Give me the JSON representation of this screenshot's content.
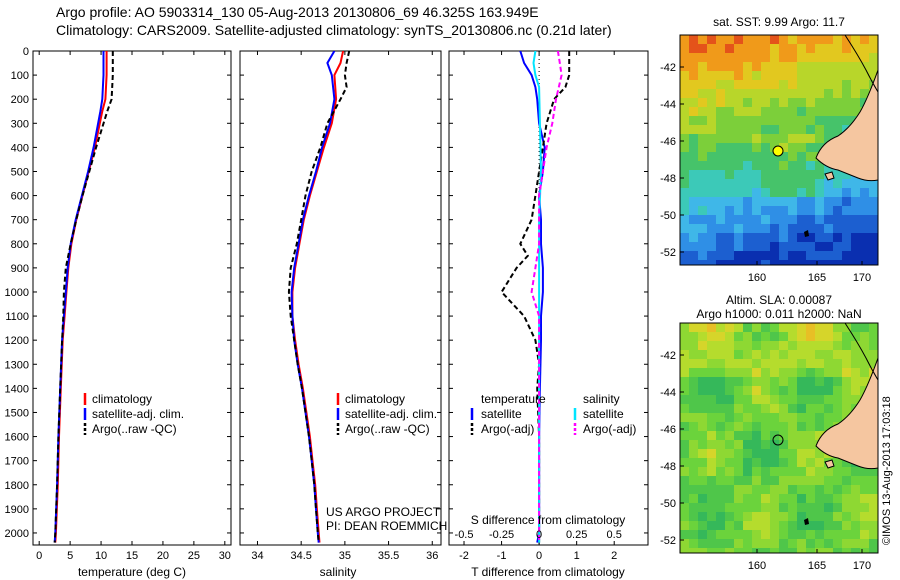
{
  "header": {
    "line1": "Argo profile: AO 5903314_130 05-Aug-2013 20130806_69 46.325S 163.949E",
    "line2": "Climatology: CARS2009. Satellite-adjusted climatology: synTS_20130806.nc (0.21d later)"
  },
  "colors": {
    "climatology": "#ff0000",
    "satellite": "#0000ff",
    "argo": "#000000",
    "sat_salinity": "#00e5ff",
    "argo_salinity": "#ff00ff",
    "land": "#f5c6a0"
  },
  "shared_yticks": [
    0,
    100,
    200,
    300,
    400,
    500,
    600,
    700,
    800,
    900,
    1000,
    1100,
    1200,
    1300,
    1400,
    1500,
    1600,
    1700,
    1800,
    1900,
    2000
  ],
  "chart_data": [
    {
      "type": "line",
      "xlabel": "temperature (deg C)",
      "xlim": [
        -1,
        31
      ],
      "ylim": [
        2050,
        0
      ],
      "xticks": [
        0,
        5,
        10,
        15,
        20,
        25,
        30
      ],
      "legend": [
        "climatology",
        "satellite-adj. clim.",
        "Argo(..raw -QC)"
      ],
      "series": [
        {
          "name": "climatology",
          "points": [
            [
              10.9,
              0
            ],
            [
              10.9,
              100
            ],
            [
              10.7,
              200
            ],
            [
              10.2,
              250
            ],
            [
              9.0,
              400
            ],
            [
              8.0,
              500
            ],
            [
              7.0,
              600
            ],
            [
              6.0,
              700
            ],
            [
              5.2,
              800
            ],
            [
              4.7,
              900
            ],
            [
              4.4,
              1000
            ],
            [
              4.1,
              1100
            ],
            [
              3.8,
              1200
            ],
            [
              3.5,
              1400
            ],
            [
              3.2,
              1600
            ],
            [
              3.0,
              1800
            ],
            [
              2.7,
              2000
            ],
            [
              2.6,
              2040
            ]
          ]
        },
        {
          "name": "satellite-adj. clim.",
          "points": [
            [
              10.4,
              0
            ],
            [
              10.4,
              100
            ],
            [
              10.2,
              200
            ],
            [
              9.9,
              250
            ],
            [
              8.8,
              400
            ],
            [
              7.9,
              500
            ],
            [
              6.9,
              600
            ],
            [
              5.9,
              700
            ],
            [
              5.1,
              800
            ],
            [
              4.6,
              900
            ],
            [
              4.3,
              1000
            ],
            [
              4.0,
              1100
            ],
            [
              3.7,
              1200
            ],
            [
              3.4,
              1400
            ],
            [
              3.1,
              1600
            ],
            [
              2.9,
              1800
            ],
            [
              2.6,
              2000
            ],
            [
              2.5,
              2040
            ]
          ]
        },
        {
          "name": "Argo(..raw -QC)",
          "points": [
            [
              11.9,
              0
            ],
            [
              11.9,
              100
            ],
            [
              11.7,
              200
            ],
            [
              11.0,
              250
            ],
            [
              9.2,
              400
            ],
            [
              8.1,
              500
            ],
            [
              7.0,
              600
            ],
            [
              6.0,
              700
            ],
            [
              5.1,
              800
            ],
            [
              4.3,
              900
            ],
            [
              4.0,
              1000
            ],
            [
              3.9,
              1100
            ],
            [
              3.7,
              1200
            ],
            [
              3.4,
              1400
            ],
            [
              3.1,
              1600
            ],
            [
              2.9,
              1800
            ],
            [
              2.6,
              2000
            ],
            [
              2.5,
              2040
            ]
          ]
        }
      ]
    },
    {
      "type": "line",
      "xlabel": "salinity",
      "xlim": [
        33.8,
        36.1
      ],
      "ylim": [
        2050,
        0
      ],
      "xticks": [
        34,
        34.5,
        35,
        35.5,
        36
      ],
      "legend": [
        "climatology",
        "satellite-adj. clim.",
        "Argo(..raw -QC)"
      ],
      "annotation": [
        "US ARGO PROJECT",
        "PI: DEAN ROEMMICH"
      ],
      "series": [
        {
          "name": "climatology",
          "points": [
            [
              34.98,
              0
            ],
            [
              34.95,
              50
            ],
            [
              34.88,
              100
            ],
            [
              34.9,
              200
            ],
            [
              34.85,
              300
            ],
            [
              34.76,
              400
            ],
            [
              34.68,
              500
            ],
            [
              34.6,
              600
            ],
            [
              34.53,
              700
            ],
            [
              34.48,
              800
            ],
            [
              34.43,
              900
            ],
            [
              34.4,
              1000
            ],
            [
              34.4,
              1100
            ],
            [
              34.43,
              1200
            ],
            [
              34.47,
              1300
            ],
            [
              34.52,
              1400
            ],
            [
              34.56,
              1500
            ],
            [
              34.6,
              1600
            ],
            [
              34.63,
              1700
            ],
            [
              34.66,
              1800
            ],
            [
              34.68,
              1900
            ],
            [
              34.7,
              2000
            ],
            [
              34.71,
              2040
            ]
          ]
        },
        {
          "name": "satellite-adj. clim.",
          "points": [
            [
              34.88,
              0
            ],
            [
              34.8,
              50
            ],
            [
              34.85,
              100
            ],
            [
              34.88,
              200
            ],
            [
              34.83,
              300
            ],
            [
              34.74,
              400
            ],
            [
              34.67,
              500
            ],
            [
              34.59,
              600
            ],
            [
              34.52,
              700
            ],
            [
              34.47,
              800
            ],
            [
              34.42,
              900
            ],
            [
              34.39,
              1000
            ],
            [
              34.4,
              1100
            ],
            [
              34.42,
              1200
            ],
            [
              34.46,
              1300
            ],
            [
              34.51,
              1400
            ],
            [
              34.55,
              1500
            ],
            [
              34.59,
              1600
            ],
            [
              34.62,
              1700
            ],
            [
              34.65,
              1800
            ],
            [
              34.67,
              1900
            ],
            [
              34.69,
              2000
            ],
            [
              34.7,
              2040
            ]
          ]
        },
        {
          "name": "Argo(..raw -QC)",
          "points": [
            [
              35.05,
              0
            ],
            [
              35.02,
              50
            ],
            [
              35.0,
              100
            ],
            [
              35.02,
              150
            ],
            [
              34.95,
              200
            ],
            [
              34.8,
              300
            ],
            [
              34.72,
              400
            ],
            [
              34.62,
              500
            ],
            [
              34.55,
              600
            ],
            [
              34.5,
              700
            ],
            [
              34.45,
              800
            ],
            [
              34.38,
              900
            ],
            [
              34.36,
              1000
            ],
            [
              34.38,
              1100
            ],
            [
              34.42,
              1200
            ],
            [
              34.46,
              1300
            ],
            [
              34.51,
              1400
            ],
            [
              34.55,
              1500
            ],
            [
              34.59,
              1600
            ],
            [
              34.62,
              1700
            ],
            [
              34.65,
              1800
            ],
            [
              34.67,
              1900
            ],
            [
              34.69,
              2000
            ],
            [
              34.7,
              2040
            ]
          ]
        }
      ]
    },
    {
      "type": "line",
      "xlabel": "T difference from climatology",
      "xlabel_top": "S difference from climatology",
      "xlim": [
        -2.4,
        2.9
      ],
      "ylim": [
        2050,
        0
      ],
      "xticks": [
        -2,
        -1,
        0,
        1,
        2
      ],
      "xticks_top": [
        -0.5,
        -0.25,
        0,
        0.25,
        0.5
      ],
      "legend_left_title": "temperature",
      "legend_right_title": "salinity",
      "legend": [
        "satellite",
        "Argo(-adj)",
        "satellite",
        "Argo(-adj)"
      ],
      "series": [
        {
          "name": "satellite",
          "points": [
            [
              -0.5,
              0
            ],
            [
              -0.4,
              50
            ],
            [
              -0.2,
              100
            ],
            [
              -0.1,
              150
            ],
            [
              -0.05,
              200
            ],
            [
              0,
              300
            ],
            [
              0.15,
              400
            ],
            [
              0.1,
              500
            ],
            [
              0,
              600
            ],
            [
              0.05,
              700
            ],
            [
              0.05,
              800
            ],
            [
              0.1,
              900
            ],
            [
              0.1,
              1000
            ],
            [
              0.05,
              1100
            ],
            [
              0.05,
              1200
            ],
            [
              0.02,
              1400
            ],
            [
              0,
              1600
            ],
            [
              0,
              1800
            ],
            [
              0,
              2000
            ],
            [
              -0.05,
              2040
            ]
          ]
        },
        {
          "name": "Argo(-adj)",
          "points": [
            [
              0.8,
              0
            ],
            [
              0.8,
              100
            ],
            [
              0.7,
              150
            ],
            [
              0.4,
              200
            ],
            [
              0.2,
              300
            ],
            [
              0.1,
              400
            ],
            [
              0,
              500
            ],
            [
              -0.1,
              600
            ],
            [
              -0.2,
              700
            ],
            [
              -0.5,
              800
            ],
            [
              -0.3,
              850
            ],
            [
              -0.6,
              900
            ],
            [
              -1.0,
              1000
            ],
            [
              -0.4,
              1100
            ],
            [
              -0.1,
              1200
            ],
            [
              0,
              1300
            ],
            [
              -0.05,
              1400
            ],
            [
              0,
              1600
            ],
            [
              0,
              1800
            ],
            [
              0,
              2000
            ],
            [
              0,
              2040
            ]
          ]
        },
        {
          "name": "satellite",
          "points": [
            [
              -0.1,
              0
            ],
            [
              -0.15,
              50
            ],
            [
              -0.1,
              100
            ],
            [
              0,
              150
            ],
            [
              0.02,
              300
            ],
            [
              0.05,
              500
            ],
            [
              0,
              700
            ],
            [
              0,
              1000
            ],
            [
              0,
              1500
            ],
            [
              0,
              2000
            ],
            [
              0,
              2040
            ]
          ]
        },
        {
          "name": "Argo(-adj)",
          "points": [
            [
              0.5,
              0
            ],
            [
              0.55,
              50
            ],
            [
              0.6,
              100
            ],
            [
              0.45,
              200
            ],
            [
              0.35,
              300
            ],
            [
              0.2,
              400
            ],
            [
              0.1,
              500
            ],
            [
              0,
              600
            ],
            [
              0,
              800
            ],
            [
              -0.1,
              900
            ],
            [
              -0.2,
              1000
            ],
            [
              0,
              1100
            ],
            [
              0,
              1500
            ],
            [
              0,
              2000
            ],
            [
              0,
              2040
            ]
          ]
        }
      ]
    }
  ],
  "maps": [
    {
      "title": "sat. SST: 9.99 Argo: 11.7",
      "xticks": [
        "160",
        "165",
        "170"
      ],
      "yticks": [
        "-42",
        "-44",
        "-46",
        "-48",
        "-50",
        "-52"
      ]
    },
    {
      "title_line1": "Altim. SLA: 0.00087",
      "title_line2": "Argo h1000: 0.011 h2000: NaN",
      "xticks": [
        "160",
        "165",
        "170"
      ],
      "yticks": [
        "-42",
        "-44",
        "-46",
        "-48",
        "-50",
        "-52"
      ]
    }
  ],
  "stamp": "©IMOS 13-Aug-2013 17:03:18"
}
